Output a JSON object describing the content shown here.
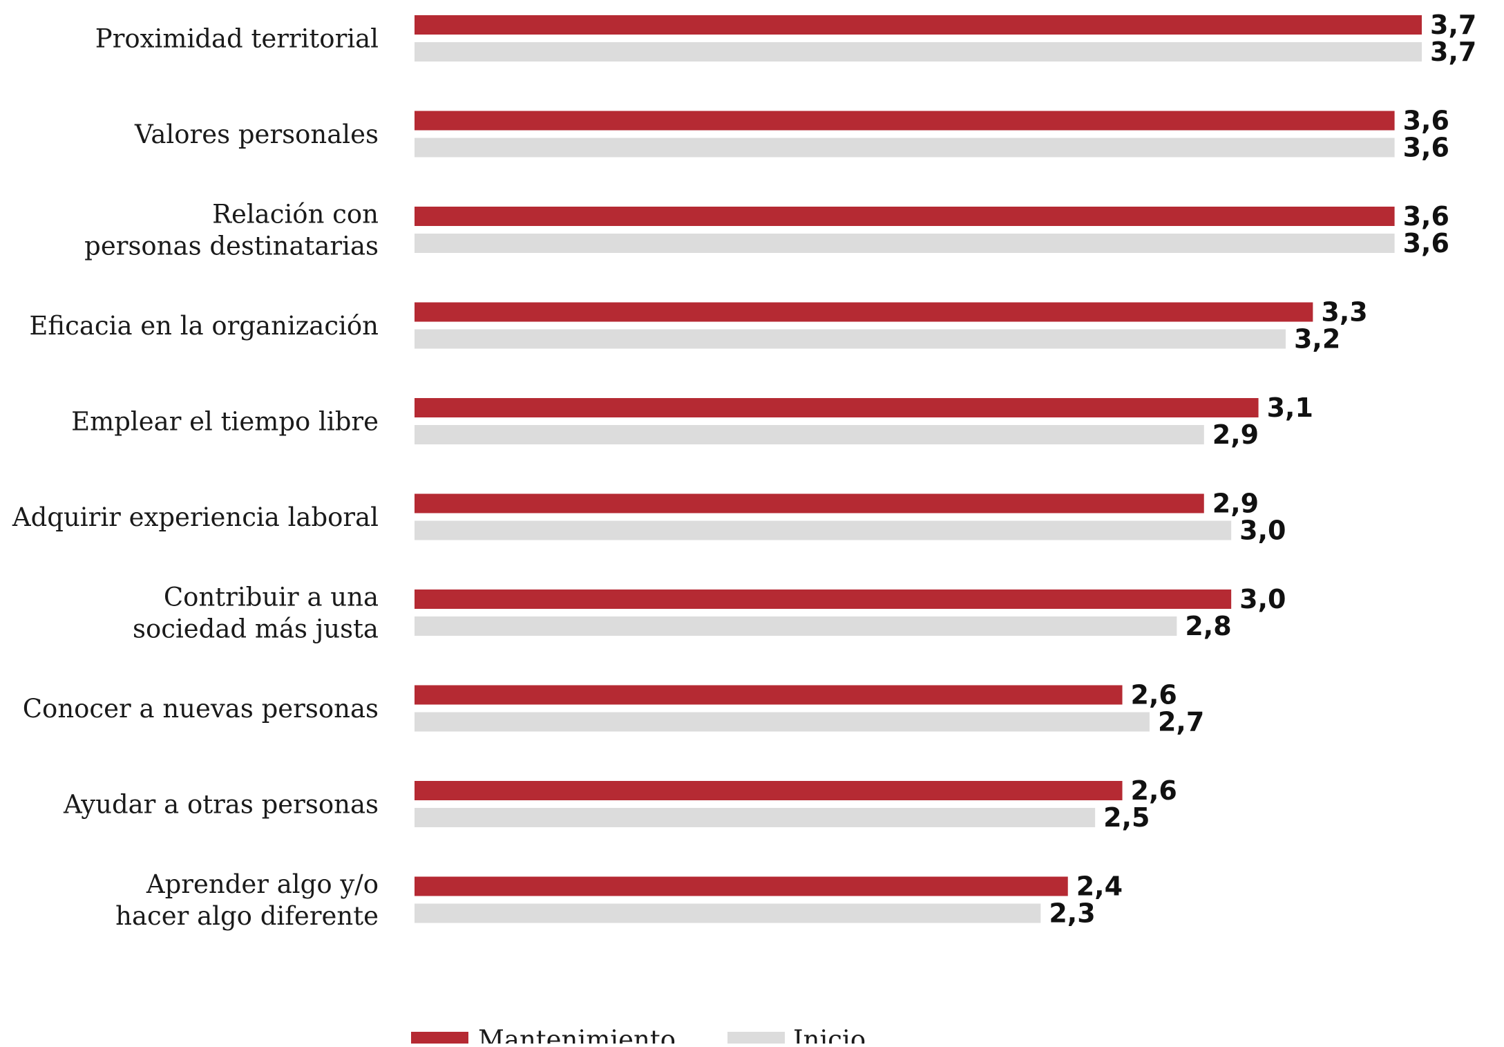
{
  "chart_data": {
    "type": "bar",
    "orientation": "horizontal",
    "categories": [
      [
        "Proximidad territorial"
      ],
      [
        "Valores personales"
      ],
      [
        "Relación con",
        "personas destinatarias"
      ],
      [
        "Eficacia en la organización"
      ],
      [
        "Emplear el tiempo libre"
      ],
      [
        "Adquirir experiencia laboral"
      ],
      [
        "Contribuir a una",
        "sociedad más justa"
      ],
      [
        "Conocer a nuevas personas"
      ],
      [
        "Ayudar a otras personas"
      ],
      [
        "Aprender algo y/o",
        "hacer algo diferente"
      ]
    ],
    "series": [
      {
        "name": "Mantenimiento",
        "color": "#b52a33",
        "values": [
          3.7,
          3.6,
          3.6,
          3.3,
          3.1,
          2.9,
          3.0,
          2.6,
          2.6,
          2.4
        ],
        "labels": [
          "3,7",
          "3,6",
          "3,6",
          "3,3",
          "3,1",
          "2,9",
          "3,0",
          "2,6",
          "2,6",
          "2,4"
        ]
      },
      {
        "name": "Inicio",
        "color": "#dcdcdc",
        "values": [
          3.7,
          3.6,
          3.6,
          3.2,
          2.9,
          3.0,
          2.8,
          2.7,
          2.5,
          2.3
        ],
        "labels": [
          "3,7",
          "3,6",
          "3,6",
          "3,2",
          "2,9",
          "3,0",
          "2,8",
          "2,7",
          "2,5",
          "2,3"
        ]
      }
    ],
    "xlim": [
      0,
      3.7
    ],
    "grid": false,
    "legend_position": "bottom"
  }
}
